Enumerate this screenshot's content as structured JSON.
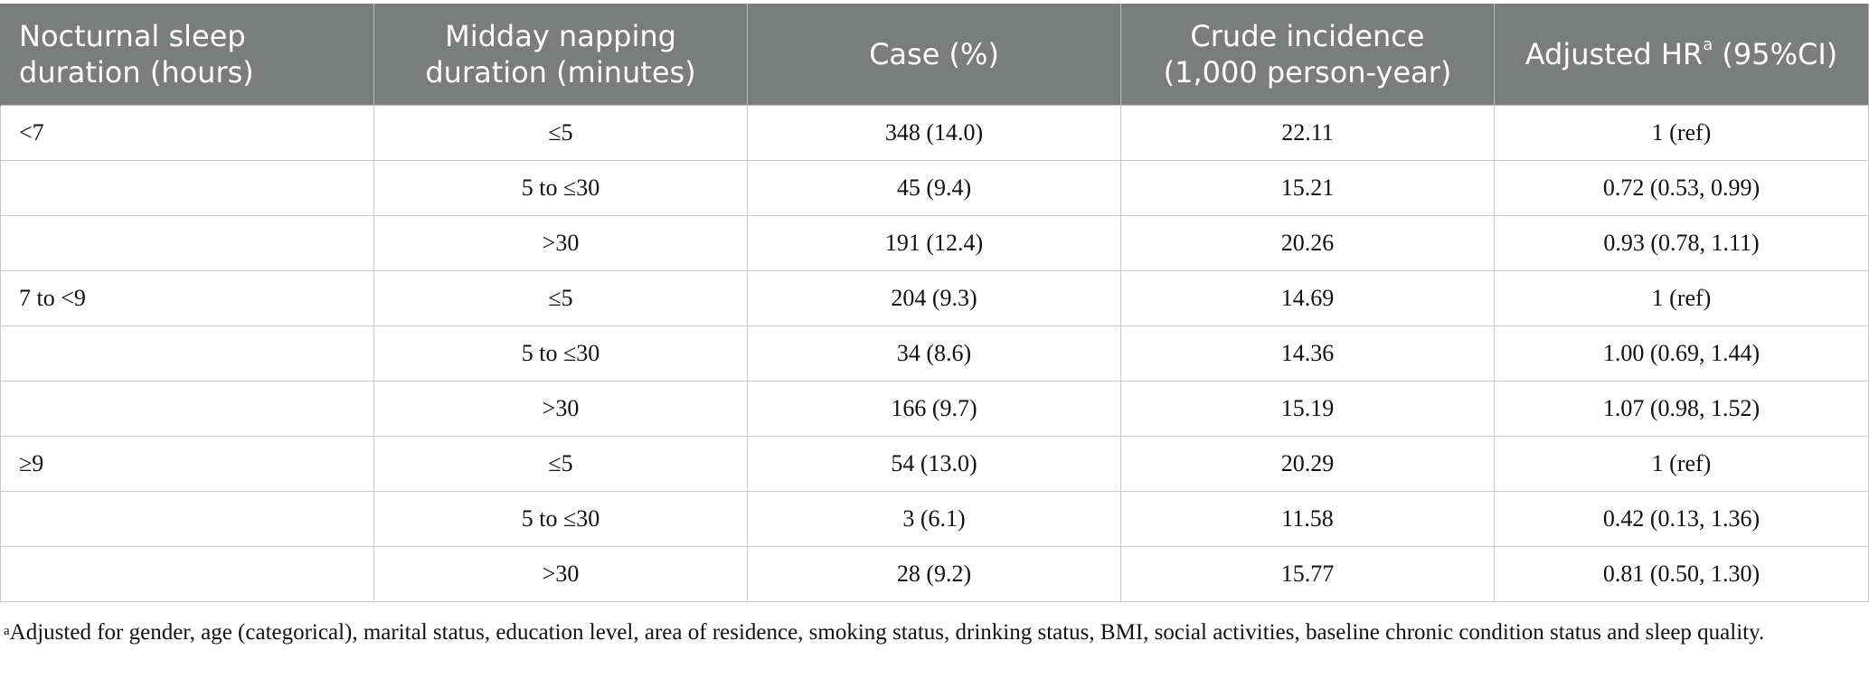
{
  "table": {
    "headers": [
      {
        "line1": "Nocturnal sleep",
        "line2": "duration (hours)"
      },
      {
        "line1": "Midday napping",
        "line2": "duration (minutes)"
      },
      {
        "line1": "Case (%)",
        "line2": ""
      },
      {
        "line1": "Crude incidence",
        "line2": "(1,000 person-year)"
      },
      {
        "line1": "Adjusted HR",
        "sup": "a",
        "line2": " (95%CI)"
      }
    ],
    "rows": [
      [
        "<7",
        "≤5",
        "348 (14.0)",
        "22.11",
        "1 (ref)"
      ],
      [
        "",
        "5 to ≤30",
        "45 (9.4)",
        "15.21",
        "0.72 (0.53, 0.99)"
      ],
      [
        "",
        ">30",
        "191 (12.4)",
        "20.26",
        "0.93 (0.78, 1.11)"
      ],
      [
        "7 to <9",
        "≤5",
        "204 (9.3)",
        "14.69",
        "1 (ref)"
      ],
      [
        "",
        "5 to ≤30",
        "34 (8.6)",
        "14.36",
        "1.00 (0.69, 1.44)"
      ],
      [
        "",
        ">30",
        "166 (9.7)",
        "15.19",
        "1.07 (0.98, 1.52)"
      ],
      [
        "≥9",
        "≤5",
        "54 (13.0)",
        "20.29",
        "1 (ref)"
      ],
      [
        "",
        "5 to ≤30",
        "3 (6.1)",
        "11.58",
        "0.42 (0.13, 1.36)"
      ],
      [
        "",
        ">30",
        "28 (9.2)",
        "15.77",
        "0.81 (0.50, 1.30)"
      ]
    ]
  },
  "footnote": {
    "marker": "a",
    "text": "Adjusted for gender, age (categorical), marital status, education level, area of residence, smoking status, drinking status, BMI, social activities, baseline chronic condition status and sleep quality."
  },
  "colors": {
    "header_bg": "#7b7d7c",
    "header_text": "#ffffff",
    "grid": "#c9cac9"
  }
}
